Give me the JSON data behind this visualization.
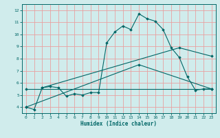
{
  "title": "",
  "xlabel": "Humidex (Indice chaleur)",
  "ylabel": "",
  "bg_color": "#d0ecec",
  "grid_color": "#e8a0a0",
  "line_color": "#006666",
  "spine_color": "#006666",
  "xlim": [
    -0.5,
    23.5
  ],
  "ylim": [
    3.5,
    12.5
  ],
  "xticks": [
    0,
    1,
    2,
    3,
    4,
    5,
    6,
    7,
    8,
    9,
    10,
    11,
    12,
    13,
    14,
    15,
    16,
    17,
    18,
    19,
    20,
    21,
    22,
    23
  ],
  "yticks": [
    4,
    5,
    6,
    7,
    8,
    9,
    10,
    11,
    12
  ],
  "series": [
    {
      "x": [
        0,
        1,
        2,
        3,
        4,
        5,
        6,
        7,
        8,
        9,
        10,
        11,
        12,
        13,
        14,
        15,
        16,
        17,
        18,
        19,
        20,
        21,
        22,
        23
      ],
      "y": [
        4.0,
        3.8,
        5.6,
        5.7,
        5.6,
        4.9,
        5.1,
        5.0,
        5.2,
        5.2,
        9.3,
        10.2,
        10.7,
        10.4,
        11.7,
        11.3,
        11.1,
        10.4,
        8.9,
        8.1,
        6.5,
        5.4,
        5.5,
        5.5
      ]
    },
    {
      "x": [
        0,
        14,
        23
      ],
      "y": [
        4.0,
        7.5,
        5.5
      ]
    },
    {
      "x": [
        2,
        19,
        23
      ],
      "y": [
        5.6,
        8.9,
        8.2
      ]
    },
    {
      "x": [
        0,
        23
      ],
      "y": [
        5.5,
        5.5
      ]
    }
  ]
}
